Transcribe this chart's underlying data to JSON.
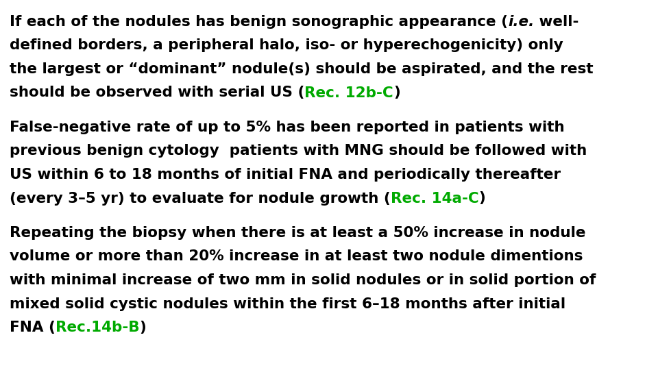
{
  "background_color": "#ffffff",
  "font_size": 15.5,
  "black_color": "#000000",
  "green_color": "#00aa00",
  "lines": [
    [
      {
        "text": "If each of the nodules has benign sonographic appearance (",
        "color": "#000000",
        "italic": false
      },
      {
        "text": "i.e.",
        "color": "#000000",
        "italic": true
      },
      {
        "text": " well-",
        "color": "#000000",
        "italic": false
      }
    ],
    [
      {
        "text": "defined borders, a peripheral halo, iso- or hyperechogenicity) only",
        "color": "#000000",
        "italic": false
      }
    ],
    [
      {
        "text": "the largest or “dominant” nodule(s) should be aspirated, and the rest",
        "color": "#000000",
        "italic": false
      }
    ],
    [
      {
        "text": "should be observed with serial US (",
        "color": "#000000",
        "italic": false
      },
      {
        "text": "Rec. 12b-C",
        "color": "#00aa00",
        "italic": false
      },
      {
        "text": ")",
        "color": "#000000",
        "italic": false
      }
    ],
    null,
    [
      {
        "text": "False-negative rate of up to 5% has been reported in patients with",
        "color": "#000000",
        "italic": false
      }
    ],
    [
      {
        "text": "previous benign cytology  patients with MNG should be followed with",
        "color": "#000000",
        "italic": false
      }
    ],
    [
      {
        "text": "US within 6 to 18 months of initial FNA and periodically thereafter",
        "color": "#000000",
        "italic": false
      }
    ],
    [
      {
        "text": "(every 3–5 yr) to evaluate for nodule growth (",
        "color": "#000000",
        "italic": false
      },
      {
        "text": "Rec. 14a-C",
        "color": "#00aa00",
        "italic": false
      },
      {
        "text": ")",
        "color": "#000000",
        "italic": false
      }
    ],
    null,
    [
      {
        "text": "Repeating the biopsy when there is at least a 50% increase in nodule",
        "color": "#000000",
        "italic": false
      }
    ],
    [
      {
        "text": "volume or more than 20% increase in at least two nodule dimentions",
        "color": "#000000",
        "italic": false
      }
    ],
    [
      {
        "text": "with minimal increase of two mm in solid nodules or in solid portion of",
        "color": "#000000",
        "italic": false
      }
    ],
    [
      {
        "text": "mixed solid cystic nodules within the first 6–18 months after initial",
        "color": "#000000",
        "italic": false
      }
    ],
    [
      {
        "text": "FNA (",
        "color": "#000000",
        "italic": false
      },
      {
        "text": "Rec.14b-B",
        "color": "#00aa00",
        "italic": false
      },
      {
        "text": ")",
        "color": "#000000",
        "italic": false
      }
    ]
  ]
}
